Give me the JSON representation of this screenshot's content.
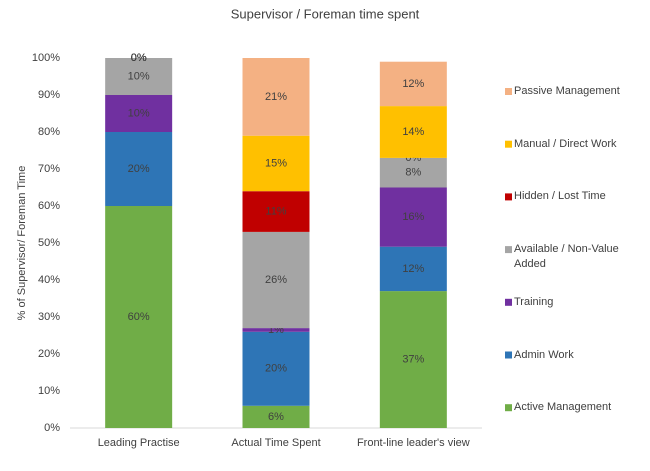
{
  "chart_data": {
    "type": "stacked-bar",
    "title": "Supervisor / Foreman  time spent",
    "y_label": "% of Supervisor/ Foreman Time",
    "categories": [
      "Leading Practise",
      "Actual Time Spent",
      "Front-line leader's view"
    ],
    "ylim": [
      0,
      100
    ],
    "yticks": [
      {
        "value": 0,
        "label": "0%"
      },
      {
        "value": 10,
        "label": "10%"
      },
      {
        "value": 20,
        "label": "20%"
      },
      {
        "value": 30,
        "label": "30%"
      },
      {
        "value": 40,
        "label": "40%"
      },
      {
        "value": 50,
        "label": "50%"
      },
      {
        "value": 60,
        "label": "60%"
      },
      {
        "value": 70,
        "label": "70%"
      },
      {
        "value": 80,
        "label": "80%"
      },
      {
        "value": 90,
        "label": "90%"
      },
      {
        "value": 100,
        "label": "100%"
      }
    ],
    "grid": false,
    "legend": "right",
    "series": [
      {
        "name": "Active Management",
        "color": "#70ad47",
        "values": [
          60,
          6,
          37
        ],
        "value_labels": [
          "60%",
          "6%",
          "37%"
        ]
      },
      {
        "name": "Admin Work",
        "color": "#2e75b6",
        "values": [
          20,
          20,
          12
        ],
        "value_labels": [
          "20%",
          "20%",
          "12%"
        ]
      },
      {
        "name": "Training",
        "color": "#7030a0",
        "values": [
          10,
          1,
          16
        ],
        "value_labels": [
          "10%",
          "1%",
          "16%"
        ]
      },
      {
        "name": "Available / Non-Value Added",
        "color": "#a5a5a5",
        "values": [
          10,
          26,
          8
        ],
        "value_labels": [
          "10%",
          "26%",
          "8%"
        ]
      },
      {
        "name": "Hidden / Lost Time",
        "color": "#c00000",
        "values": [
          0,
          11,
          0
        ],
        "value_labels": [
          "0%",
          "11%",
          "0%"
        ]
      },
      {
        "name": "Manual / Direct Work",
        "color": "#ffc000",
        "values": [
          0,
          15,
          14
        ],
        "value_labels": [
          "0%",
          "15%",
          "14%"
        ]
      },
      {
        "name": "Passive Management",
        "color": "#f4b183",
        "values": [
          0,
          21,
          12
        ],
        "value_labels": [
          "0%",
          "21%",
          "12%"
        ]
      }
    ]
  }
}
